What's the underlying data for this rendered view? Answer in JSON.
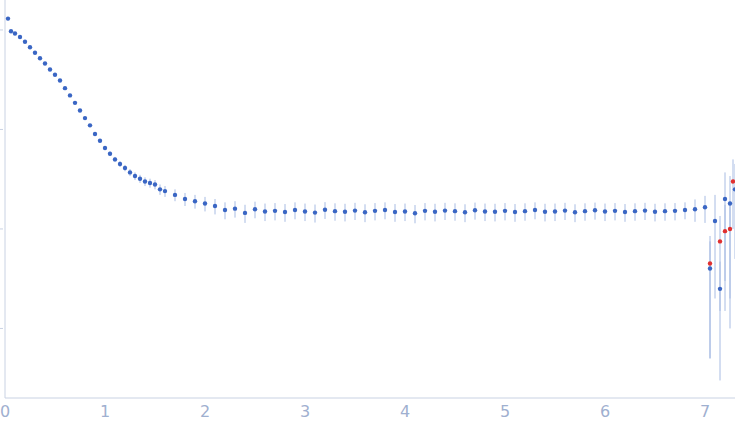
{
  "chart_data": {
    "type": "scatter",
    "log": "y",
    "grid": false,
    "tick_labels": "x",
    "marker": "circle",
    "xlim": [
      0,
      7.3
    ],
    "xticks": [
      0,
      1,
      2,
      3,
      4,
      5,
      6,
      7
    ],
    "ylim": [
      0.0002,
      2
    ],
    "yticks": [
      1,
      0.1,
      0.01,
      0.001
    ],
    "series": [
      {
        "color": "#3a66c4",
        "x": [
          0.03,
          0.06,
          0.1,
          0.15,
          0.2,
          0.25,
          0.3,
          0.35,
          0.4,
          0.45,
          0.5,
          0.55,
          0.6,
          0.65,
          0.7,
          0.75,
          0.8,
          0.85,
          0.9,
          0.95,
          1.0,
          1.05,
          1.1,
          1.15,
          1.2,
          1.25,
          1.3,
          1.35,
          1.4,
          1.45,
          1.5,
          1.55,
          1.6,
          1.7,
          1.8,
          1.9,
          2.0,
          2.1,
          2.2,
          2.3,
          2.4,
          2.5,
          2.6,
          2.7,
          2.8,
          2.9,
          3.0,
          3.1,
          3.2,
          3.3,
          3.4,
          3.5,
          3.6,
          3.7,
          3.8,
          3.9,
          4.0,
          4.1,
          4.2,
          4.3,
          4.4,
          4.5,
          4.6,
          4.7,
          4.8,
          4.9,
          5.0,
          5.1,
          5.2,
          5.3,
          5.4,
          5.5,
          5.6,
          5.7,
          5.8,
          5.9,
          6.0,
          6.1,
          6.2,
          6.3,
          6.4,
          6.5,
          6.6,
          6.7,
          6.8,
          6.9,
          7.0,
          7.05,
          7.1,
          7.15,
          7.2,
          7.25,
          7.3
        ],
        "values": [
          1.3,
          0.97,
          0.92,
          0.85,
          0.76,
          0.67,
          0.59,
          0.52,
          0.46,
          0.4,
          0.355,
          0.31,
          0.26,
          0.22,
          0.185,
          0.155,
          0.13,
          0.11,
          0.09,
          0.077,
          0.065,
          0.057,
          0.05,
          0.045,
          0.041,
          0.037,
          0.034,
          0.032,
          0.03,
          0.029,
          0.028,
          0.025,
          0.024,
          0.022,
          0.02,
          0.019,
          0.018,
          0.017,
          0.0155,
          0.016,
          0.0145,
          0.0158,
          0.015,
          0.0152,
          0.0148,
          0.0155,
          0.015,
          0.0146,
          0.0156,
          0.0151,
          0.0149,
          0.0153,
          0.0147,
          0.0152,
          0.0155,
          0.0148,
          0.015,
          0.0144,
          0.0152,
          0.0149,
          0.0153,
          0.0151,
          0.0147,
          0.0154,
          0.015,
          0.0149,
          0.0152,
          0.0148,
          0.0151,
          0.0155,
          0.0149,
          0.015,
          0.0153,
          0.0147,
          0.0151,
          0.0154,
          0.015,
          0.0152,
          0.0148,
          0.0151,
          0.0153,
          0.0149,
          0.0151,
          0.0152,
          0.0155,
          0.0158,
          0.0165,
          0.004,
          0.012,
          0.0025,
          0.02,
          0.018,
          0.025
        ],
        "errors": [
          0.05,
          0.01,
          0.01,
          0.008,
          0.007,
          0.006,
          0.005,
          0.005,
          0.004,
          0.004,
          0.004,
          0.003,
          0.003,
          0.003,
          0.003,
          0.003,
          0.003,
          0.003,
          0.003,
          0.003,
          0.003,
          0.003,
          0.003,
          0.003,
          0.003,
          0.003,
          0.003,
          0.003,
          0.003,
          0.003,
          0.003,
          0.003,
          0.003,
          0.003,
          0.003,
          0.003,
          0.003,
          0.003,
          0.003,
          0.003,
          0.003,
          0.003,
          0.003,
          0.003,
          0.003,
          0.003,
          0.003,
          0.003,
          0.003,
          0.003,
          0.003,
          0.003,
          0.003,
          0.003,
          0.003,
          0.003,
          0.003,
          0.003,
          0.003,
          0.003,
          0.003,
          0.003,
          0.003,
          0.003,
          0.003,
          0.003,
          0.003,
          0.003,
          0.003,
          0.003,
          0.003,
          0.003,
          0.003,
          0.003,
          0.003,
          0.003,
          0.003,
          0.003,
          0.003,
          0.003,
          0.003,
          0.003,
          0.003,
          0.003,
          0.003,
          0.004,
          0.005,
          0.0035,
          0.01,
          0.0022,
          0.017,
          0.016,
          0.02
        ]
      },
      {
        "color": "#e03030",
        "x": [
          7.05,
          7.15,
          7.2,
          7.25,
          7.28
        ],
        "values": [
          0.0045,
          0.0075,
          0.0095,
          0.01,
          0.03
        ],
        "errors": [
          0.004,
          0.006,
          0.008,
          0.009,
          0.02
        ]
      }
    ]
  }
}
